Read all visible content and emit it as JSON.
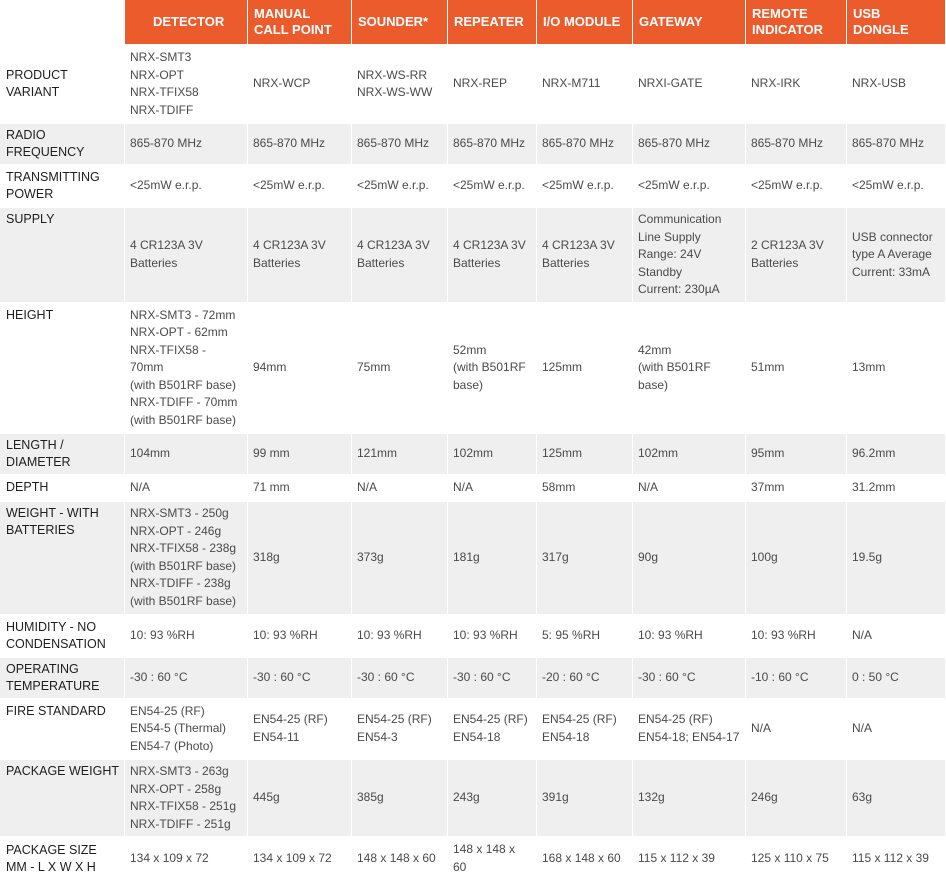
{
  "columns": [
    "DETECTOR",
    "MANUAL CALL POINT",
    "SOUNDER*",
    "REPEATER",
    "I/O MODULE",
    "GATEWAY",
    "REMOTE INDICATOR",
    "USB DONGLE"
  ],
  "rows": [
    {
      "label": "PRODUCT VARIANT",
      "cells": [
        "NRX-SMT3\nNRX-OPT\nNRX-TFIX58\nNRX-TDIFF",
        "NRX-WCP",
        "NRX-WS-RR\nNRX-WS-WW",
        "NRX-REP",
        "NRX-M711",
        "NRXI-GATE",
        "NRX-IRK",
        "NRX-USB"
      ]
    },
    {
      "label": "RADIO FREQUENCY",
      "cells": [
        "865-870 MHz",
        "865-870 MHz",
        "865-870 MHz",
        "865-870 MHz",
        "865-870 MHz",
        "865-870 MHz",
        "865-870 MHz",
        "865-870 MHz"
      ]
    },
    {
      "label": "TRANSMITTING POWER",
      "cells": [
        "<25mW e.r.p.",
        "<25mW e.r.p.",
        "<25mW e.r.p.",
        "<25mW e.r.p.",
        "<25mW e.r.p.",
        "<25mW e.r.p.",
        "<25mW e.r.p.",
        "<25mW e.r.p."
      ]
    },
    {
      "label": "SUPPLY",
      "cells": [
        "4 CR123A 3V\nBatteries",
        "4 CR123A 3V\nBatteries",
        "4 CR123A 3V\nBatteries",
        "4 CR123A 3V\nBatteries",
        "4 CR123A 3V\nBatteries",
        "Communication\nLine Supply\nRange: 24V\nStandby\nCurrent: 230µA",
        "2 CR123A 3V\nBatteries",
        "USB connector\ntype A Average\nCurrent: 33mA"
      ]
    },
    {
      "label": "HEIGHT",
      "cells": [
        "NRX-SMT3 - 72mm\nNRX-OPT - 62mm\nNRX-TFIX58 - 70mm\n(with B501RF base)\nNRX-TDIFF - 70mm\n(with B501RF base)",
        "94mm",
        "75mm",
        "52mm\n(with B501RF\nbase)",
        "125mm",
        "42mm\n(with B501RF\nbase)",
        "51mm",
        "13mm"
      ]
    },
    {
      "label": "LENGTH / DIAMETER",
      "cells": [
        "104mm",
        "99 mm",
        "121mm",
        "102mm",
        "125mm",
        "102mm",
        "95mm",
        "96.2mm"
      ]
    },
    {
      "label": "DEPTH",
      "cells": [
        "N/A",
        "71 mm",
        "N/A",
        "N/A",
        "58mm",
        "N/A",
        "37mm",
        "31.2mm"
      ]
    },
    {
      "label": "WEIGHT - WITH BATTERIES",
      "cells": [
        "NRX-SMT3 - 250g\nNRX-OPT - 246g\nNRX-TFIX58 - 238g\n(with B501RF base)\nNRX-TDIFF - 238g\n(with B501RF base)",
        "318g",
        "373g",
        "181g",
        "317g",
        "90g",
        "100g",
        "19.5g"
      ]
    },
    {
      "label": "HUMIDITY - NO CONDENSATION",
      "cells": [
        "10: 93 %RH",
        "10: 93 %RH",
        "10: 93 %RH",
        "10: 93 %RH",
        "5: 95 %RH",
        "10: 93 %RH",
        "10: 93 %RH",
        "N/A"
      ]
    },
    {
      "label": "OPERATING TEMPERATURE",
      "cells": [
        "-30 : 60 °C",
        "-30 : 60 °C",
        "-30 : 60 °C",
        "-30 : 60 °C",
        "-20 : 60 °C",
        "-30 : 60 °C",
        "-10 : 60 °C",
        "0 : 50 °C"
      ]
    },
    {
      "label": "FIRE STANDARD",
      "cells": [
        "EN54-25 (RF)\nEN54-5 (Thermal)\nEN54-7 (Photo)",
        "EN54-25 (RF)\nEN54-11",
        "EN54-25 (RF)\nEN54-3",
        "EN54-25 (RF)\nEN54-18",
        "EN54-25 (RF)\nEN54-18",
        "EN54-25 (RF)\nEN54-18; EN54-17",
        "N/A",
        "N/A"
      ]
    },
    {
      "label": "PACKAGE WEIGHT",
      "cells": [
        "NRX-SMT3 - 263g\nNRX-OPT - 258g\nNRX-TFIX58 - 251g\nNRX-TDIFF - 251g",
        "445g",
        "385g",
        "243g",
        "391g",
        "132g",
        "246g",
        "63g"
      ]
    },
    {
      "label": "PACKAGE SIZE MM - L X W X H",
      "cells": [
        "134 x 109 x 72",
        "134 x 109 x 72",
        "148 x 148 x 60",
        "148 x 148 x 60",
        "168 x 148 x 60",
        "115 x 112 x 39",
        "125 x 110 x 75",
        "115 x 112 x 39"
      ]
    }
  ]
}
